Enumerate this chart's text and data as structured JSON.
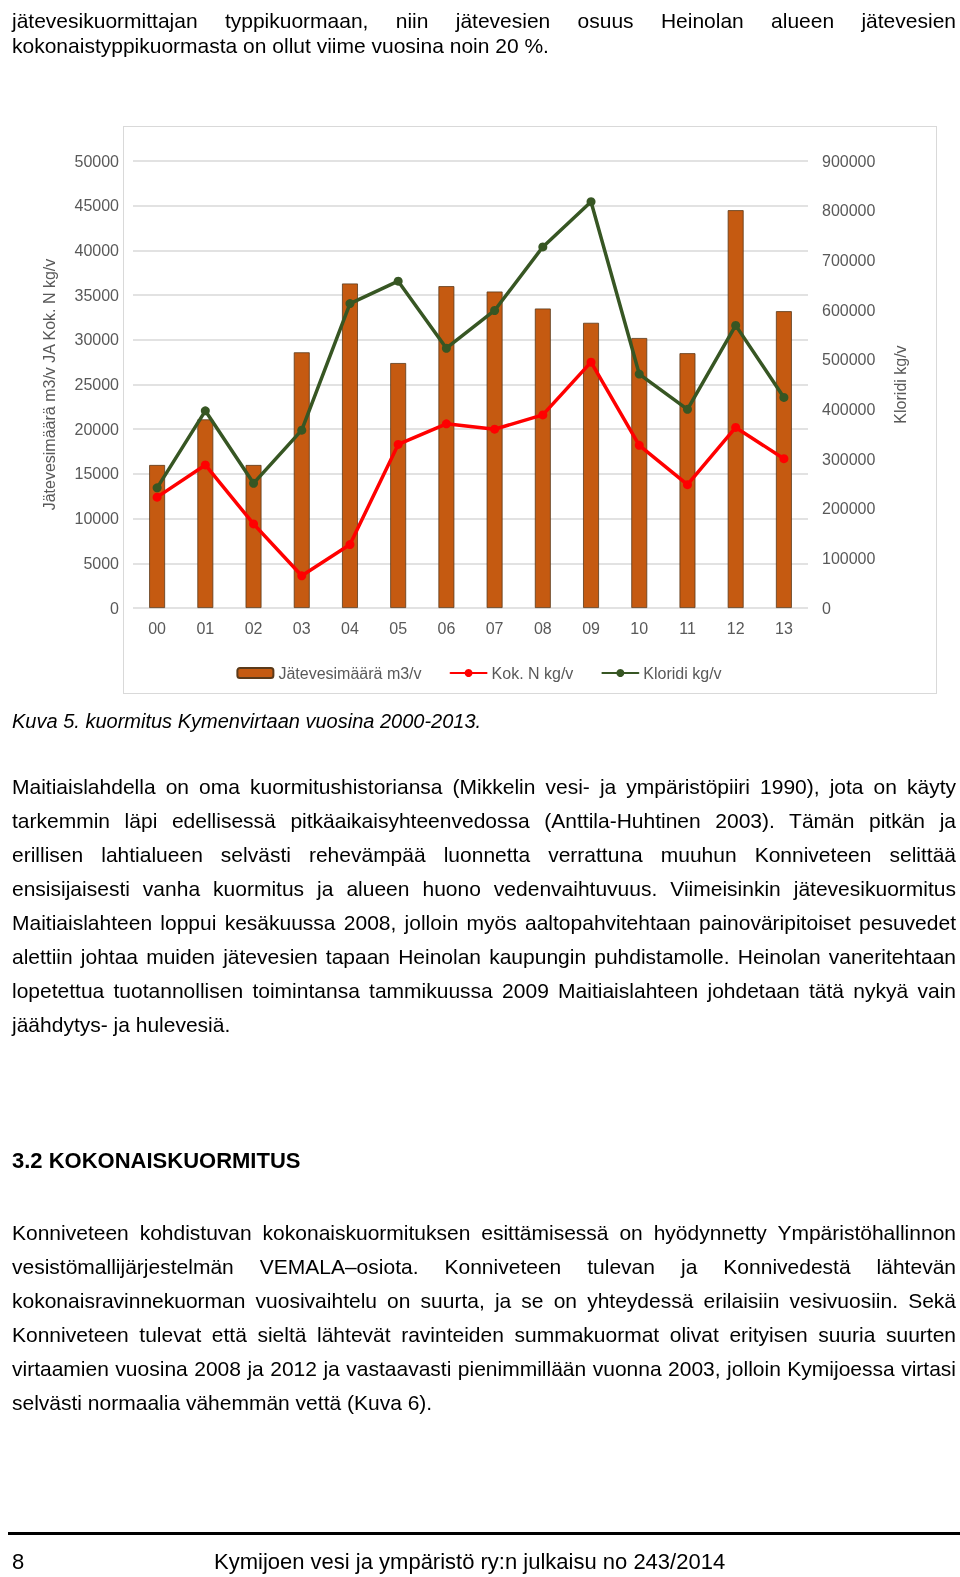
{
  "chart_data": {
    "type": "bar",
    "categories": [
      "00",
      "01",
      "02",
      "03",
      "04",
      "05",
      "06",
      "07",
      "08",
      "09",
      "10",
      "11",
      "12",
      "13"
    ],
    "series": [
      {
        "name": "Jätevesimäärä m3/v",
        "color": "#c55a11",
        "values": [
          16000,
          21100,
          16000,
          28600,
          36300,
          27400,
          36000,
          35400,
          33500,
          31900,
          30200,
          28500,
          44500,
          33200
        ]
      },
      {
        "name": "Kok. N kg/v",
        "type": "line",
        "color": "#ff0000",
        "values": [
          12400,
          16000,
          9400,
          3600,
          7100,
          18300,
          20600,
          20000,
          21600,
          27500,
          18200,
          13800,
          20200,
          16700
        ]
      },
      {
        "name": "Kloridi kg/v",
        "type": "line",
        "axis": "y2",
        "color": "#375623",
        "values": [
          242000,
          397000,
          251000,
          358000,
          613000,
          658000,
          523000,
          599000,
          727000,
          818000,
          471000,
          400000,
          569000,
          424000
        ]
      }
    ],
    "ylabel": "Jätevesimäärä m3/v JA Kok. N kg/v",
    "y2label": "Kloridi kg/v",
    "ylim": [
      0,
      50000
    ],
    "yticks": [
      0,
      5000,
      10000,
      15000,
      20000,
      25000,
      30000,
      35000,
      40000,
      45000,
      50000
    ],
    "y2lim": [
      0,
      900000
    ],
    "y2ticks": [
      0,
      100000,
      200000,
      300000,
      400000,
      500000,
      600000,
      700000,
      800000,
      900000
    ],
    "grid": "y",
    "legend": "bottom",
    "marker": "circle",
    "line_style": "solid",
    "annotations": [
      "jätevesikuormittajan typpikuormaan, niin jätevesien osuus Heinolan alueen jätevesien kokonaistyppikuormasta on ollut viime vuosina noin 20 %.",
      "Kuva 5. kuormitus Kymenvirtaan vuosina 2000-2013.",
      "Maitiaislahdella on oma kuormitushistoriansa (Mikkelin vesi- ja ympäristöpiiri 1990), jota on käyty tarkemmin läpi edellisessä pitkäaikaisyhteenvedossa (Anttila-Huhtinen 2003). Tämän pitkän ja erillisen lahtialueen selvästi rehevämpää luonnetta verrattuna muuhun Konniveteen selittää ensisijaisesti vanha kuormitus ja alueen huono vedenvaihtuvuus. Viimeisinkin jätevesikuormitus Maitiaislahteen loppui kesäkuussa 2008, jolloin myös aaltopahvitehtaan painoväripitoiset pesuvedet alettiin johtaa muiden jätevesien tapaan Heinolan kaupungin puhdistamolle. Heinolan vaneritehtaan lopetettua tuotannollisen toimintansa tammikuussa 2009 Maitiaislahteen johdetaan tätä nykyä vain jäähdytys- ja hulevesiä.",
      "3.2 KOKONAISKUORMITUS",
      "Konniveteen kohdistuvan kokonaiskuormituksen esittämisessä on hyödynnetty Ympäristöhallinnon vesistömallijärjestelmän VEMALA–osiota. Konniveteen tulevan ja Konnivedestä lähtevän kokonaisravinnekuorman vuosivaihtelu on suurta, ja se on yhteydessä erilaisiin vesivuosiin. Sekä Konniveteen tulevat että sieltä lähtevät ravinteiden summakuormat olivat erityisen suuria suurten virtaamien vuosina 2008 ja 2012 ja vastaavasti pienimmillään vuonna 2003, jolloin Kymijoessa virtasi selvästi normaalia vähemmän vettä (Kuva 6).",
      "8",
      "Kymijoen vesi ja ympäristö ry:n julkaisu no 243/2014"
    ]
  }
}
